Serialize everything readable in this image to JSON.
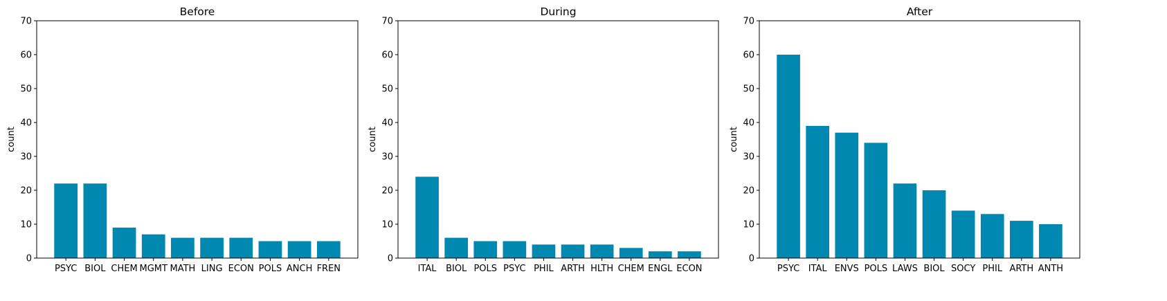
{
  "chart_data": [
    {
      "type": "bar",
      "title": "Before",
      "ylabel": "count",
      "xlabel": "",
      "ylim": [
        0,
        70
      ],
      "yticks": [
        0,
        10,
        20,
        30,
        40,
        50,
        60,
        70
      ],
      "grid": false,
      "bar_color": "#0088b0",
      "categories": [
        "PSYC",
        "BIOL",
        "CHEM",
        "MGMT",
        "MATH",
        "LING",
        "ECON",
        "POLS",
        "ANCH",
        "FREN"
      ],
      "values": [
        22,
        22,
        9,
        7,
        6,
        6,
        6,
        5,
        5,
        5
      ]
    },
    {
      "type": "bar",
      "title": "During",
      "ylabel": "count",
      "xlabel": "",
      "ylim": [
        0,
        70
      ],
      "yticks": [
        0,
        10,
        20,
        30,
        40,
        50,
        60,
        70
      ],
      "grid": false,
      "bar_color": "#0088b0",
      "categories": [
        "ITAL",
        "BIOL",
        "POLS",
        "PSYC",
        "PHIL",
        "ARTH",
        "HLTH",
        "CHEM",
        "ENGL",
        "ECON"
      ],
      "values": [
        24,
        6,
        5,
        5,
        4,
        4,
        4,
        3,
        2,
        2
      ]
    },
    {
      "type": "bar",
      "title": "After",
      "ylabel": "count",
      "xlabel": "",
      "ylim": [
        0,
        70
      ],
      "yticks": [
        0,
        10,
        20,
        30,
        40,
        50,
        60,
        70
      ],
      "grid": false,
      "bar_color": "#0088b0",
      "categories": [
        "PSYC",
        "ITAL",
        "ENVS",
        "POLS",
        "LAWS",
        "BIOL",
        "SOCY",
        "PHIL",
        "ARTH",
        "ANTH"
      ],
      "values": [
        60,
        39,
        37,
        34,
        22,
        20,
        14,
        13,
        11,
        10
      ]
    }
  ]
}
